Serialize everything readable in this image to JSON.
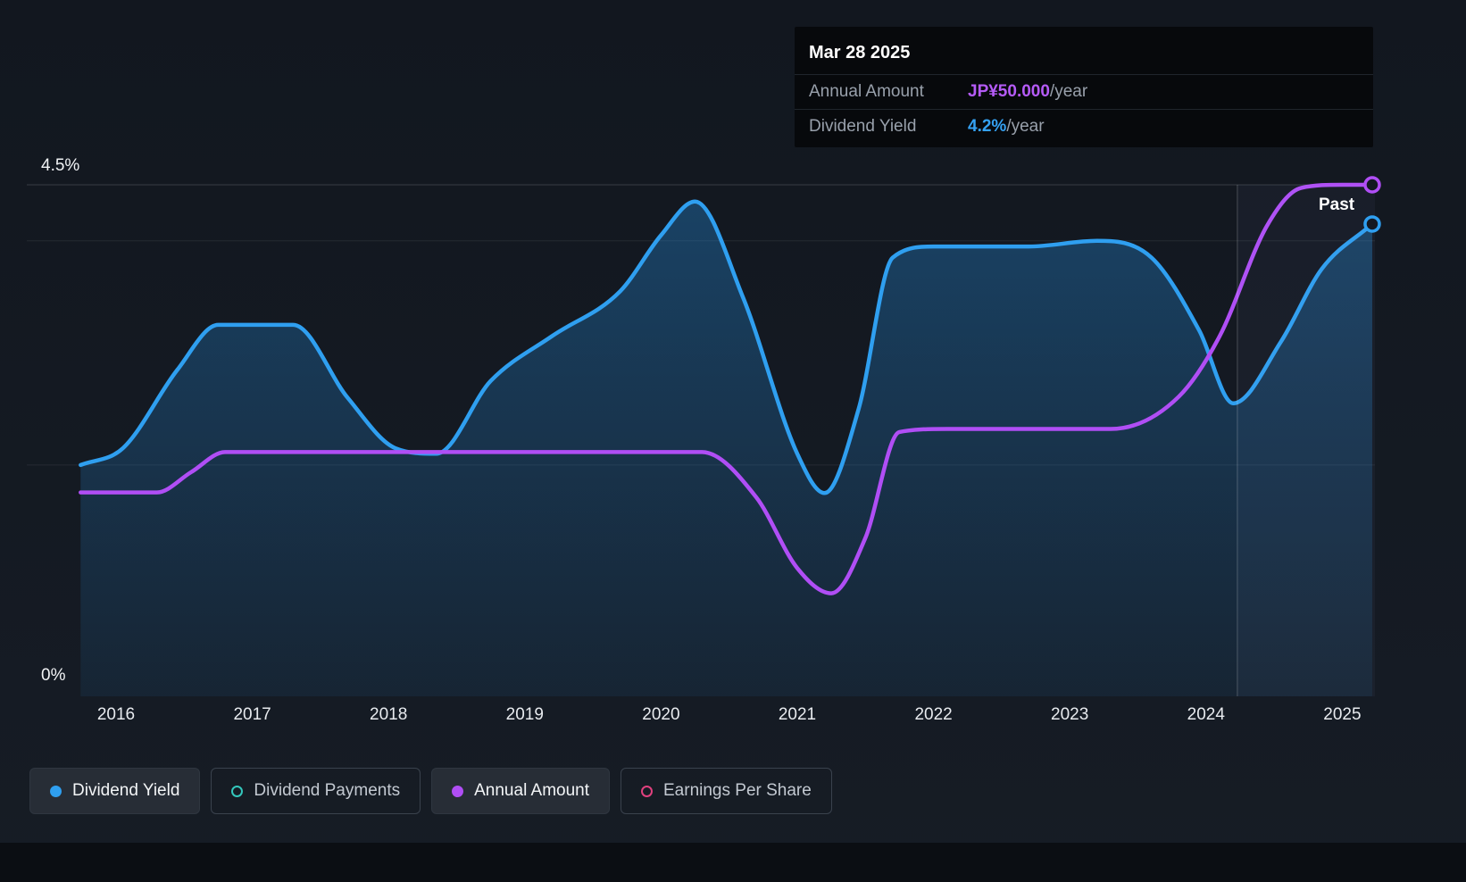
{
  "tooltip": {
    "date": "Mar 28 2025",
    "rows": [
      {
        "label": "Annual Amount",
        "value": "JP¥50.000",
        "suffix": "/year",
        "color": "#b55bf7"
      },
      {
        "label": "Dividend Yield",
        "value": "4.2%",
        "suffix": "/year",
        "color": "#35a2f3"
      }
    ]
  },
  "axis": {
    "y_top_label": "4.5%",
    "y_bottom_label": "0%",
    "x_labels": [
      "2016",
      "2017",
      "2018",
      "2019",
      "2020",
      "2021",
      "2022",
      "2023",
      "2024",
      "2025"
    ]
  },
  "past_label": "Past",
  "legend": [
    {
      "label": "Dividend Yield",
      "color": "#2f9ff0",
      "filled": true,
      "active": true
    },
    {
      "label": "Dividend Payments",
      "color": "#34c7bc",
      "filled": false,
      "active": false
    },
    {
      "label": "Annual Amount",
      "color": "#b04ef5",
      "filled": true,
      "active": true
    },
    {
      "label": "Earnings Per Share",
      "color": "#e0417e",
      "filled": false,
      "active": false
    }
  ],
  "chart_data": {
    "type": "line",
    "x_axis": {
      "min": 2015.74,
      "max": 2025.22,
      "tick_years": [
        2016,
        2017,
        2018,
        2019,
        2020,
        2021,
        2022,
        2023,
        2024,
        2025
      ]
    },
    "y_axis": {
      "label": "Dividend Yield",
      "unit": "%",
      "min": 0,
      "max": 4.5,
      "gridline_values": [
        4.5,
        4.0,
        2.0
      ]
    },
    "y2_axis": {
      "label": "Annual Amount",
      "unit": "JP¥",
      "min": 0,
      "max": 50
    },
    "past_boundary_year": 2024.23,
    "legend_position": "bottom",
    "series": [
      {
        "name": "Dividend Yield",
        "axis": "y",
        "color": "#2f9ff0",
        "area": true,
        "points": [
          [
            2015.74,
            2.0
          ],
          [
            2016.05,
            2.15
          ],
          [
            2016.45,
            2.85
          ],
          [
            2016.75,
            3.25
          ],
          [
            2017.3,
            3.25
          ],
          [
            2017.7,
            2.6
          ],
          [
            2018.05,
            2.15
          ],
          [
            2018.35,
            2.1
          ],
          [
            2018.75,
            2.75
          ],
          [
            2019.2,
            3.15
          ],
          [
            2019.7,
            3.55
          ],
          [
            2020.0,
            4.05
          ],
          [
            2020.25,
            4.35
          ],
          [
            2020.6,
            3.5
          ],
          [
            2021.0,
            2.1
          ],
          [
            2021.2,
            1.75
          ],
          [
            2021.45,
            2.5
          ],
          [
            2021.7,
            3.85
          ],
          [
            2022.0,
            3.95
          ],
          [
            2022.7,
            3.95
          ],
          [
            2023.2,
            4.0
          ],
          [
            2023.6,
            3.85
          ],
          [
            2023.95,
            3.2
          ],
          [
            2024.2,
            2.55
          ],
          [
            2024.55,
            3.1
          ],
          [
            2024.85,
            3.75
          ],
          [
            2025.22,
            4.15
          ]
        ]
      },
      {
        "name": "Annual Amount",
        "axis": "y2",
        "color": "#b04ef5",
        "area": false,
        "points": [
          [
            2015.74,
            19.5
          ],
          [
            2016.3,
            19.5
          ],
          [
            2016.55,
            21.5
          ],
          [
            2016.8,
            23.5
          ],
          [
            2017.2,
            23.5
          ],
          [
            2020.3,
            23.5
          ],
          [
            2020.7,
            19
          ],
          [
            2021.0,
            12
          ],
          [
            2021.25,
            9.5
          ],
          [
            2021.5,
            15
          ],
          [
            2021.75,
            25.5
          ],
          [
            2022.1,
            25.8
          ],
          [
            2023.3,
            25.8
          ],
          [
            2023.8,
            29
          ],
          [
            2024.1,
            35
          ],
          [
            2024.45,
            46
          ],
          [
            2024.7,
            49.7
          ],
          [
            2025.0,
            50
          ],
          [
            2025.22,
            50
          ]
        ]
      }
    ],
    "end_markers": [
      {
        "series": "Annual Amount",
        "x": 2025.22,
        "value": 50
      },
      {
        "series": "Dividend Yield",
        "x": 2025.22,
        "value": 4.15
      }
    ]
  }
}
